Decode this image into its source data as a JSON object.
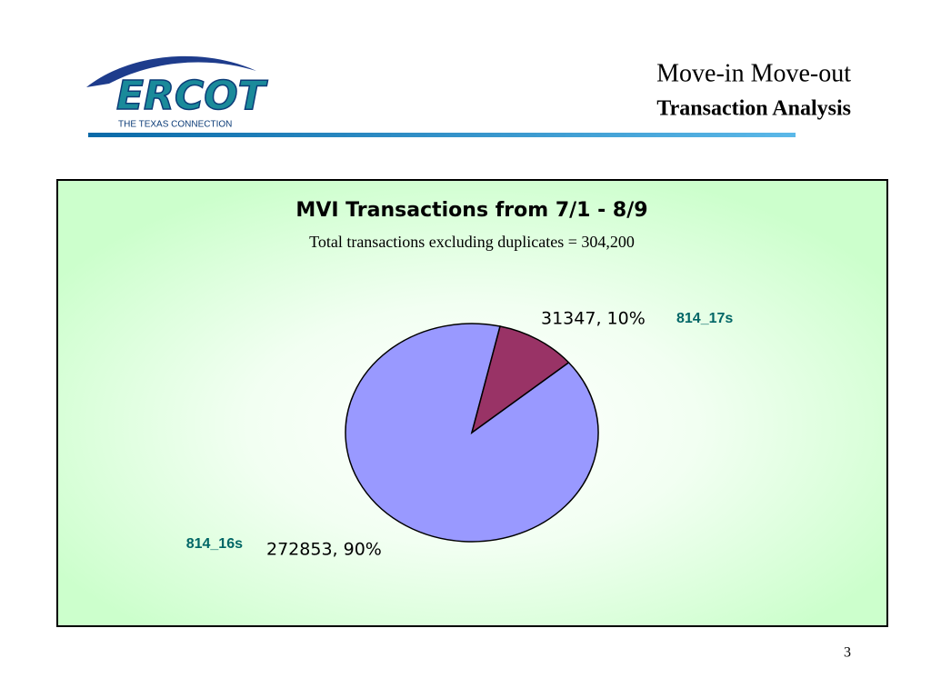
{
  "header": {
    "title": "Move-in Move-out",
    "subtitle": "Transaction Analysis",
    "logo": "ERCOT",
    "logo_tagline": "THE TEXAS CONNECTION"
  },
  "page_number": "3",
  "chart_data": {
    "type": "pie",
    "title": "MVI Transactions from 7/1 - 8/9",
    "subtitle": "Total transactions excluding duplicates = 304,200",
    "categories": [
      "814_16s",
      "814_17s"
    ],
    "values": [
      272853,
      31347
    ],
    "value_labels": [
      "272853, 90%",
      "31347, 10%"
    ],
    "colors": [
      "#9999ff",
      "#993366"
    ]
  }
}
